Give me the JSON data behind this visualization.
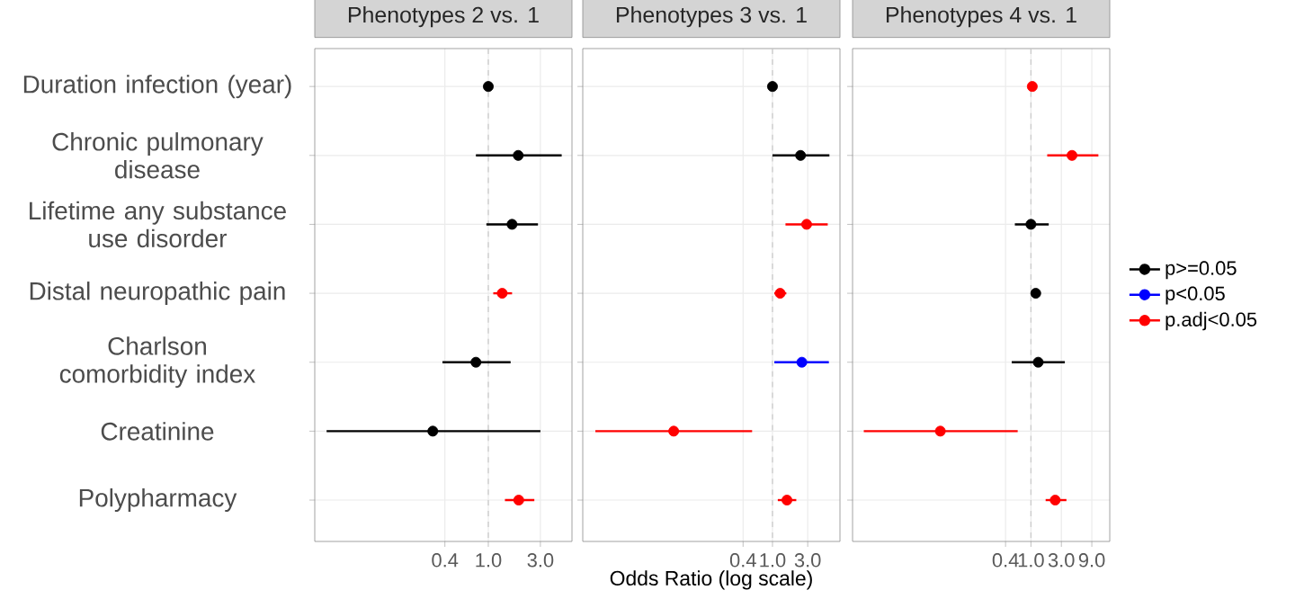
{
  "chart_data": [
    {
      "type": "scatter",
      "orientation": "horizontal",
      "title": "Phenotypes 2 vs. 1",
      "categories": [
        "Duration infection (year)",
        "Chronic pulmonary disease",
        "Lifetime any substance use disorder",
        "Distal neuropathic pain",
        "Charlson comorbidity index",
        "Creatinine",
        "Polypharmacy"
      ],
      "series": [
        {
          "color": "#000000",
          "values": [
            1.0,
            1.88,
            1.65,
            null,
            0.77,
            0.31,
            null
          ],
          "errors": [
            null,
            [
              0.77,
              4.7
            ],
            [
              0.96,
              2.85
            ],
            null,
            [
              0.38,
              1.6
            ],
            [
              0.033,
              3.0
            ],
            null
          ]
        },
        {
          "color": "#0000ff",
          "values": [
            null,
            null,
            null,
            null,
            null,
            null,
            null
          ],
          "errors": [
            null,
            null,
            null,
            null,
            null,
            null,
            null
          ]
        },
        {
          "color": "#ff0000",
          "values": [
            null,
            null,
            null,
            1.34,
            null,
            null,
            1.9
          ],
          "errors": [
            null,
            null,
            null,
            [
              1.11,
              1.65
            ],
            null,
            null,
            [
              1.42,
              2.64
            ]
          ]
        }
      ],
      "log": "x",
      "xlim": [
        0.0257,
        5.84
      ],
      "xticks": [
        {
          "value": 0.4,
          "label": "0.4"
        },
        {
          "value": 1,
          "label": "1.0"
        },
        {
          "value": 3,
          "label": "3.0"
        }
      ],
      "ref_lines": [
        {
          "axis": "x",
          "value": 1,
          "color": "#c8c8c8",
          "line_style": "dashed"
        }
      ],
      "grid": true,
      "legend": false,
      "marker": "circle"
    },
    {
      "type": "scatter",
      "orientation": "horizontal",
      "title": "Phenotypes 3 vs. 1",
      "xlabel": "Odds Ratio (log scale)",
      "categories": [
        null,
        null,
        null,
        null,
        null,
        null,
        null
      ],
      "series": [
        {
          "color": "#000000",
          "values": [
            1.0,
            2.4,
            null,
            null,
            null,
            null,
            null
          ],
          "errors": [
            null,
            [
              1.0,
              5.9
            ],
            null,
            null,
            null,
            null,
            null
          ]
        },
        {
          "color": "#0000ff",
          "values": [
            null,
            null,
            null,
            null,
            2.5,
            null,
            null
          ],
          "errors": [
            null,
            null,
            null,
            null,
            [
              1.06,
              5.8
            ],
            null,
            null
          ]
        },
        {
          "color": "#ff0000",
          "values": [
            null,
            null,
            2.9,
            1.27,
            null,
            0.046,
            1.57
          ],
          "errors": [
            null,
            null,
            [
              1.5,
              5.6
            ],
            [
              1.06,
              1.54
            ],
            null,
            [
              0.004,
              0.53
            ],
            [
              1.18,
              2.1
            ]
          ]
        }
      ],
      "log": "x",
      "xlim": [
        0.0027,
        8.2
      ],
      "xticks": [
        {
          "value": 0.4,
          "label": "0.4"
        },
        {
          "value": 1,
          "label": "1.0"
        },
        {
          "value": 3,
          "label": "3.0"
        }
      ],
      "ref_lines": [
        {
          "axis": "x",
          "value": 1,
          "color": "#c8c8c8",
          "line_style": "dashed"
        }
      ],
      "tick_labels": "x",
      "grid": true,
      "legend": false,
      "marker": "circle"
    },
    {
      "type": "scatter",
      "orientation": "horizontal",
      "title": "Phenotypes 4 vs. 1",
      "categories": [
        null,
        null,
        null,
        null,
        null,
        null,
        null
      ],
      "series": [
        {
          "name": "p>=0.05",
          "color": "#000000",
          "values": [
            null,
            null,
            1.0,
            1.19,
            1.3,
            null,
            null
          ],
          "errors": [
            null,
            null,
            [
              0.56,
              1.9
            ],
            null,
            [
              0.5,
              3.4
            ],
            null,
            null
          ]
        },
        {
          "name": "p<0.05",
          "color": "#0000ff",
          "values": [
            null,
            null,
            null,
            null,
            null,
            null,
            null
          ],
          "errors": [
            null,
            null,
            null,
            null,
            null,
            null,
            null
          ]
        },
        {
          "name": "p.adj<0.05",
          "color": "#ff0000",
          "values": [
            1.05,
            4.4,
            null,
            null,
            null,
            0.038,
            2.4
          ],
          "errors": [
            null,
            [
              1.8,
              11.4
            ],
            null,
            null,
            null,
            [
              0.0024,
              0.62
            ],
            [
              1.7,
              3.6
            ]
          ]
        }
      ],
      "log": "x",
      "xlim": [
        0.0016,
        17.2
      ],
      "xticks": [
        {
          "value": 0.4,
          "label": "0.4"
        },
        {
          "value": 1,
          "label": "1.0"
        },
        {
          "value": 3,
          "label": "3.0"
        },
        {
          "value": 9,
          "label": "9.0"
        }
      ],
      "ref_lines": [
        {
          "axis": "x",
          "value": 1,
          "color": "#c8c8c8",
          "line_style": "dashed"
        }
      ],
      "tick_labels": "x",
      "grid": true,
      "legend": "right",
      "marker": "circle"
    }
  ]
}
